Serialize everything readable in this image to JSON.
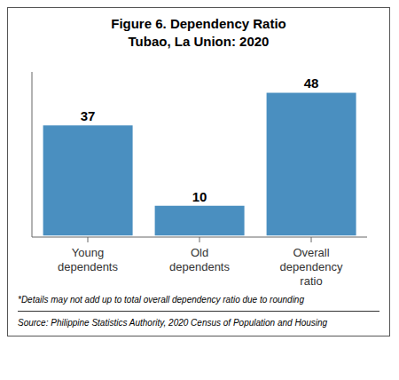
{
  "chart_data": {
    "type": "bar",
    "title": "Figure 6. Dependency Ratio",
    "subtitle": "Tubao, La Union: 2020",
    "categories": [
      "Young\ndependents",
      "Old\ndependents",
      "Overall\ndependency\nratio"
    ],
    "values": [
      37,
      10,
      48
    ],
    "color": "#4a8fc0",
    "ylim": [
      -0.5,
      55
    ],
    "tick_labels": "x",
    "data_labels": true,
    "grid": false,
    "annotations": [
      "*Details may not add up to total overall dependency ratio due to rounding",
      "Source: Philippine Statistics Authority, 2020 Census of Population and Housing"
    ]
  }
}
